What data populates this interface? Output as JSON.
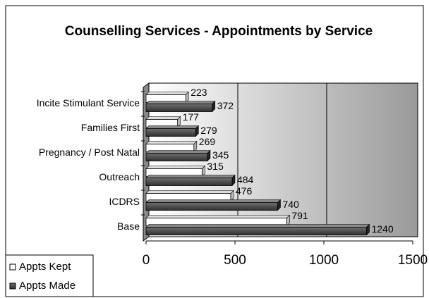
{
  "chart_data": {
    "type": "bar",
    "orientation": "horizontal",
    "title": "Counselling Services - Appointments by Service",
    "categories": [
      "Incite Stimulant Service",
      "Families First",
      "Pregnancy / Post Natal",
      "Outreach",
      "ICDRS",
      "Base"
    ],
    "series": [
      {
        "name": "Appts Kept",
        "color": "#ffffff",
        "values": [
          223,
          177,
          269,
          315,
          476,
          791
        ]
      },
      {
        "name": "Appts Made",
        "color": "#404040",
        "values": [
          372,
          279,
          345,
          484,
          740,
          1240
        ]
      }
    ],
    "xlim": [
      0,
      1500
    ],
    "xticks": [
      0,
      500,
      1000,
      1500
    ],
    "grid": true,
    "legend": "bottom-left"
  }
}
